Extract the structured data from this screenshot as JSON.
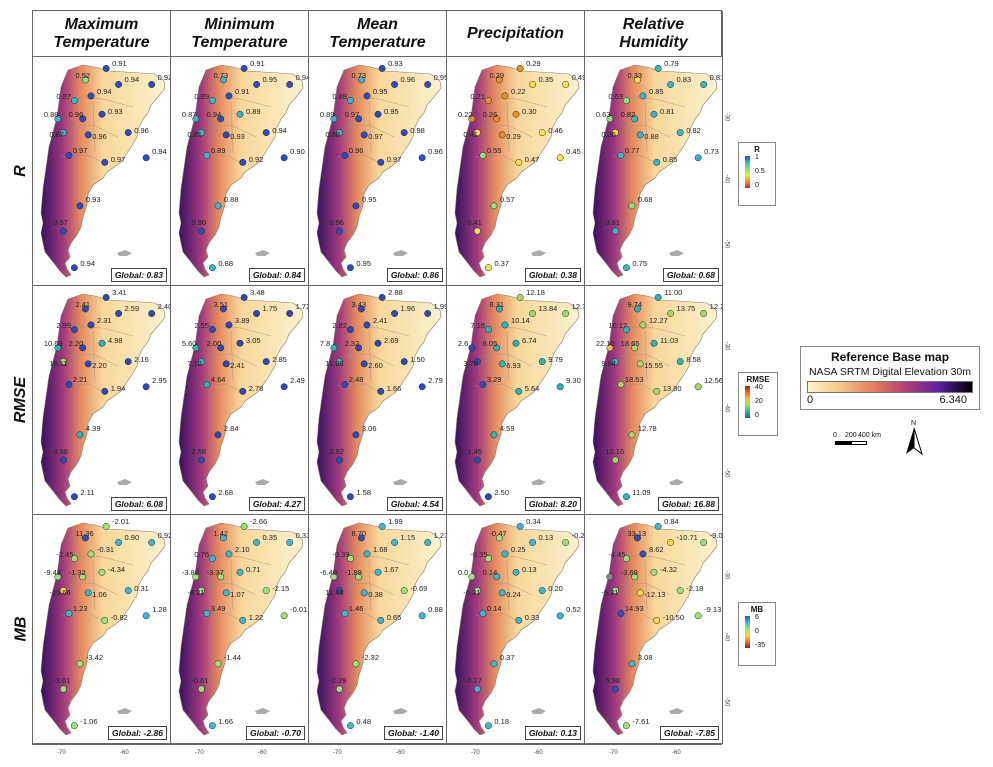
{
  "columns": [
    {
      "line1": "Maximum",
      "line2": "Temperature"
    },
    {
      "line1": "Minimum",
      "line2": "Temperature"
    },
    {
      "line1": "Mean",
      "line2": "Temperature"
    },
    {
      "line1": "Precipitation",
      "line2": ""
    },
    {
      "line1": "Relative",
      "line2": "Humidity"
    }
  ],
  "rows": [
    "R",
    "RMSE",
    "MB"
  ],
  "globals": {
    "R": [
      "Global: 0.83",
      "Global: 0.84",
      "Global: 0.86",
      "Global: 0.38",
      "Global: 0.68"
    ],
    "RMSE": [
      "Global: 6.08",
      "Global: 4.27",
      "Global: 4.54",
      "Global: 8.20",
      "Global: 16.88"
    ],
    "MB": [
      "Global: -2.86",
      "Global: -0.70",
      "Global: -1.40",
      "Global: 0.13",
      "Global: -7.85"
    ]
  },
  "station_values": {
    "R": [
      [
        "0.91",
        "0.52",
        "0.94",
        "0.92",
        "0.87",
        "0.94",
        "0.88",
        "0.96",
        "0.93",
        "0.87",
        "0.96",
        "0.96",
        "0.97",
        "0.94",
        "0.97",
        "0.93",
        "0.97",
        "0.94"
      ],
      [
        "0.91",
        "0.73",
        "0.95",
        "0.94",
        "0.89",
        "0.91",
        "0.87",
        "0.94",
        "0.89",
        "0.81",
        "0.93",
        "0.94",
        "0.89",
        "0.90",
        "0.92",
        "0.88",
        "0.90",
        "0.88"
      ],
      [
        "0.93",
        "0.73",
        "0.96",
        "0.95",
        "0.88",
        "0.95",
        "0.89",
        "0.97",
        "0.95",
        "0.88",
        "0.97",
        "0.98",
        "0.96",
        "0.96",
        "0.97",
        "0.95",
        "0.96",
        "0.95"
      ],
      [
        "0.29",
        "0.29",
        "0.35",
        "0.49",
        "0.21",
        "0.22",
        "0.22",
        "0.26",
        "0.30",
        "0.41",
        "0.29",
        "0.46",
        "0.55",
        "0.45",
        "0.47",
        "0.57",
        "0.41",
        "0.37"
      ],
      [
        "0.79",
        "0.33",
        "0.83",
        "0.81",
        "0.63",
        "0.85",
        "0.63",
        "0.82",
        "0.81",
        "0.36",
        "0.88",
        "0.82",
        "0.77",
        "0.73",
        "0.85",
        "0.68",
        "0.81",
        "0.75"
      ]
    ],
    "RMSE": [
      [
        "3.41",
        "2.41",
        "2.59",
        "2.40",
        "2.99",
        "2.31",
        "10.69",
        "2.20",
        "4.98",
        "16.11",
        "2.20",
        "2.16",
        "2.21",
        "2.95",
        "1.94",
        "4.39",
        "3.56",
        "2.11"
      ],
      [
        "3.48",
        "3.51",
        "1.75",
        "1.72",
        "2.55",
        "3.89",
        "5.60",
        "2.00",
        "3.05",
        "7.12",
        "2.41",
        "2.85",
        "4.64",
        "2.49",
        "2.78",
        "2.84",
        "2.58",
        "2.68"
      ],
      [
        "2.88",
        "3.43",
        "1.96",
        "1.99",
        "2.82",
        "2.41",
        "7.8",
        "2.32",
        "2.69",
        "11.96",
        "2.60",
        "1.50",
        "2.48",
        "2.79",
        "1.66",
        "3.06",
        "2.92",
        "1.58"
      ],
      [
        "12.18",
        "8.31",
        "13.84",
        "12.78",
        "7.16",
        "10.14",
        "2.6",
        "6.05",
        "6.74",
        "3.78",
        "6.93",
        "9.79",
        "3.29",
        "9.30",
        "5.64",
        "4.59",
        "1.45",
        "2.50"
      ],
      [
        "11.00",
        "9.74",
        "13.75",
        "12.20",
        "10.17",
        "12.27",
        "22.10",
        "18.65",
        "11.03",
        "9.84",
        "15.55",
        "8.58",
        "18.53",
        "12.56",
        "13.80",
        "12.78",
        "12.16",
        "11.09"
      ]
    ],
    "MB": [
      [
        "-2.01",
        "11.36",
        "0.90",
        "0.92",
        "-2.45",
        "-0.31",
        "-9.43",
        "-1.32",
        "-4.34",
        "-15.66",
        "1.06",
        "0.31",
        "1.23",
        "1.28",
        "-0.82",
        "-3.42",
        "-3.01",
        "-1.06"
      ],
      [
        "-2.66",
        "1.42",
        "0.35",
        "0.33",
        "0.76",
        "2.10",
        "-3.80",
        "-3.37",
        "0.71",
        "-8.21",
        "1.07",
        "-2.15",
        "3.49",
        "-0.01",
        "1.22",
        "-1.44",
        "-0.61",
        "1.66"
      ],
      [
        "1.99",
        "8.70",
        "1.15",
        "1.27",
        "-0.39",
        "1.68",
        "-6.40",
        "-1.89",
        "1.67",
        "11.48",
        "0.38",
        "-0.69",
        "1.46",
        "0.88",
        "0.65",
        "-2.32",
        "-2.29",
        "0.48"
      ],
      [
        "0.34",
        "-0.47",
        "0.13",
        "-0.21",
        "-0.35",
        "0.25",
        "0.0",
        "0.14",
        "0.13",
        "-0.21",
        "0.24",
        "0.20",
        "0.14",
        "0.52",
        "0.33",
        "0.37",
        "0.17",
        "0.18"
      ],
      [
        "0.84",
        "33.13",
        "-10.71",
        "-9.09",
        "-4.45",
        "8.62",
        "",
        "-3.69",
        "-4.32",
        "-5.21",
        "-12.13",
        "-2.18",
        "14.93",
        "-9.13",
        "-10.50",
        "3.08",
        "5.98",
        "-7.61"
      ]
    ]
  },
  "legends": {
    "R": {
      "title": "R",
      "ticks": [
        "1",
        "0.5",
        "0"
      ],
      "colors": [
        "#2b4cc0",
        "#3bb4c9",
        "#8be07a",
        "#f7e04a",
        "#e8902e",
        "#b83020"
      ]
    },
    "RMSE": {
      "title": "RMSE",
      "ticks": [
        "40",
        "20",
        "0"
      ],
      "colors": [
        "#b01b1b",
        "#e36a2a",
        "#f5c046",
        "#a7d768",
        "#2fb2b5",
        "#2f4ab7"
      ]
    },
    "MB": {
      "title": "MB",
      "ticks": [
        "6",
        "0",
        "-35"
      ],
      "colors": [
        "#2e4fbf",
        "#3fb6cf",
        "#9ee07a",
        "#f3d84a",
        "#e4782b",
        "#9b1b14"
      ]
    }
  },
  "reference": {
    "title": "Reference Base map",
    "subtitle": "NASA SRTM Digital Elevation 30m",
    "min": "0",
    "max": "6.340"
  },
  "scalebar": {
    "labels": [
      "0",
      "200",
      "400 km"
    ]
  },
  "north": "N",
  "lon_ticks": [
    "-70",
    "-60"
  ],
  "lat_ticks": [
    "-30",
    "-40",
    "-50"
  ]
}
